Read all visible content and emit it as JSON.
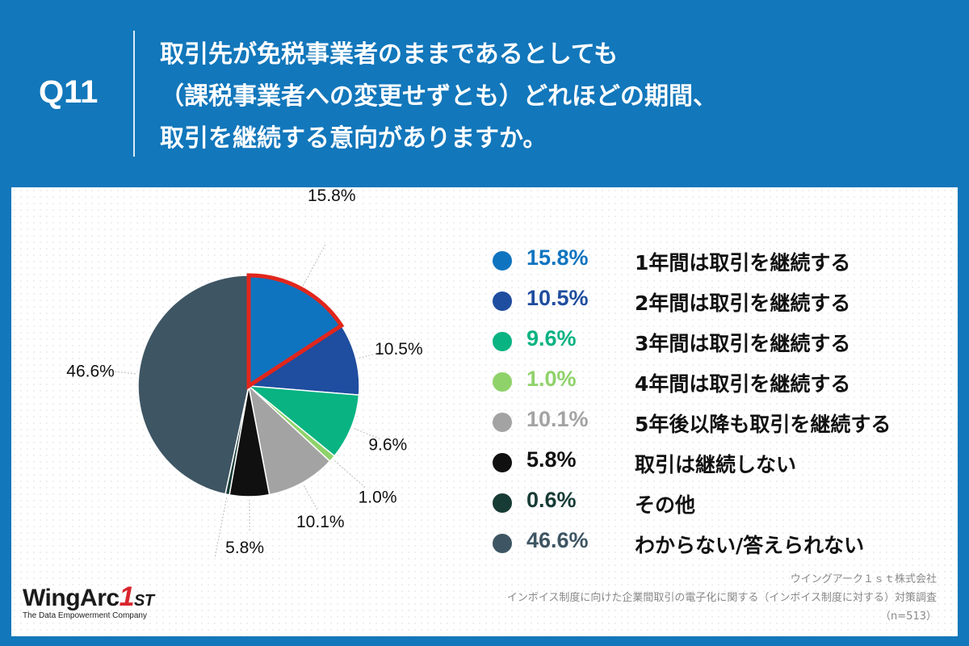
{
  "header": {
    "q_label": "Q11",
    "question_lines": [
      "取引先が免税事業者のままであるとしても",
      "（課税事業者への変更せずとも）どれほどの期間、",
      "取引を継続する意向がありますか。"
    ]
  },
  "chart_data": {
    "type": "pie",
    "start_angle_deg": 0,
    "direction": "clockwise",
    "highlighted_slice_index": 0,
    "highlight_color": "#e1261c",
    "slices": [
      {
        "label": "1年間は取引を継続する",
        "value": 15.8,
        "pct_label": "15.8%",
        "color": "#0f74c0"
      },
      {
        "label": "2年間は取引を継続する",
        "value": 10.5,
        "pct_label": "10.5%",
        "color": "#1f4d9f"
      },
      {
        "label": "3年間は取引を継続する",
        "value": 9.6,
        "pct_label": "9.6%",
        "color": "#09b382"
      },
      {
        "label": "4年間は取引を継続する",
        "value": 1.0,
        "pct_label": "1.0%",
        "color": "#8fd26a"
      },
      {
        "label": "5年後以降も取引を継続する",
        "value": 10.1,
        "pct_label": "10.1%",
        "color": "#a3a3a3"
      },
      {
        "label": "取引は継続しない",
        "value": 5.8,
        "pct_label": "5.8%",
        "color": "#101010"
      },
      {
        "label": "その他",
        "value": 0.6,
        "pct_label": "0.6%",
        "color": "#173b35"
      },
      {
        "label": "わからない/答えられない",
        "value": 46.6,
        "pct_label": "46.6%",
        "color": "#3e5563"
      }
    ]
  },
  "legend": {
    "items": [
      {
        "pct": "15.8%",
        "label": "1年間は取引を継続する",
        "color": "#0f74c0"
      },
      {
        "pct": "10.5%",
        "label": "2年間は取引を継続する",
        "color": "#1f4d9f"
      },
      {
        "pct": "9.6%",
        "label": "3年間は取引を継続する",
        "color": "#09b382"
      },
      {
        "pct": "1.0%",
        "label": "4年間は取引を継続する",
        "color": "#8fd26a"
      },
      {
        "pct": "10.1%",
        "label": "5年後以降も取引を継続する",
        "color": "#a3a3a3"
      },
      {
        "pct": "5.8%",
        "label": "取引は継続しない",
        "color": "#101010"
      },
      {
        "pct": "0.6%",
        "label": "その他",
        "color": "#173b35"
      },
      {
        "pct": "46.6%",
        "label": "わからない/答えられない",
        "color": "#3e5563"
      }
    ]
  },
  "logo": {
    "name_main": "WingArc",
    "name_one": "1",
    "name_st": "ST",
    "tagline": "The Data Empowerment Company"
  },
  "source": {
    "company": "ウイングアーク１ｓｔ株式会社",
    "survey": "インボイス制度に向けた企業間取引の電子化に関する（インボイス制度に対する）対策調査",
    "sample": "（n=513）"
  }
}
